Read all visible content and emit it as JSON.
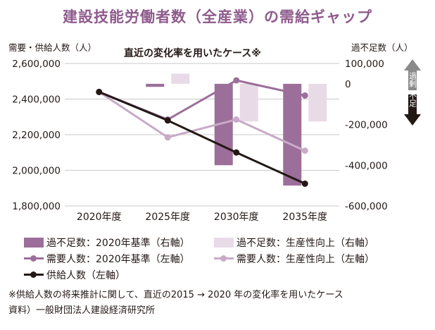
{
  "title": "建設技能労働者数（全産業）の需給ギャップ",
  "chart_data": {
    "type": "bar",
    "subtitle": "直近の変化率を用いたケース※",
    "categories": [
      "2020年度",
      "2025年度",
      "2030年度",
      "2035年度"
    ],
    "left_axis": {
      "label": "需要・供給人数（人）",
      "min": 1800000,
      "max": 2600000,
      "ticks": [
        "2,600,000",
        "2,400,000",
        "2,200,000",
        "2,000,000",
        "1,800,000"
      ],
      "tick_values": [
        2600000,
        2400000,
        2200000,
        2000000,
        1800000
      ]
    },
    "right_axis": {
      "label": "過不足数（人）",
      "min": -600000,
      "max": 100000,
      "ticks": [
        "100,000",
        "0",
        "-200,000",
        "-400,000",
        "-600,000"
      ],
      "tick_values": [
        100000,
        0,
        -200000,
        -400000,
        -600000
      ]
    },
    "indicators": {
      "surplus": "過剰",
      "shortage": "不足"
    },
    "bar_series": [
      {
        "name": "過不足数：2020年基準（右軸）",
        "color": "#9c6e9a",
        "values": [
          0,
          -15000,
          -400000,
          -500000
        ]
      },
      {
        "name": "過不足数：生産性向上（右軸）",
        "color": "#e8dbe7",
        "values": [
          0,
          50000,
          -185000,
          -185000
        ]
      }
    ],
    "line_series": [
      {
        "name": "需要人数：2020年基準（左軸）",
        "color": "#9c6e9a",
        "values": [
          2440000,
          2285000,
          2505000,
          2420000
        ]
      },
      {
        "name": "需要人数：生産性向上（左軸）",
        "color": "#c8aac7",
        "values": [
          2440000,
          2185000,
          2285000,
          2110000
        ]
      },
      {
        "name": "供給人数（左軸）",
        "color": "#231815",
        "values": [
          2440000,
          2280000,
          2100000,
          1925000
        ]
      }
    ]
  },
  "note": {
    "line1": "※供給人数の将来推計に関して、直近の2015 → 2020 年の変化率を用いたケース",
    "line2": "資料）一般財団法人建設経済研究所"
  }
}
